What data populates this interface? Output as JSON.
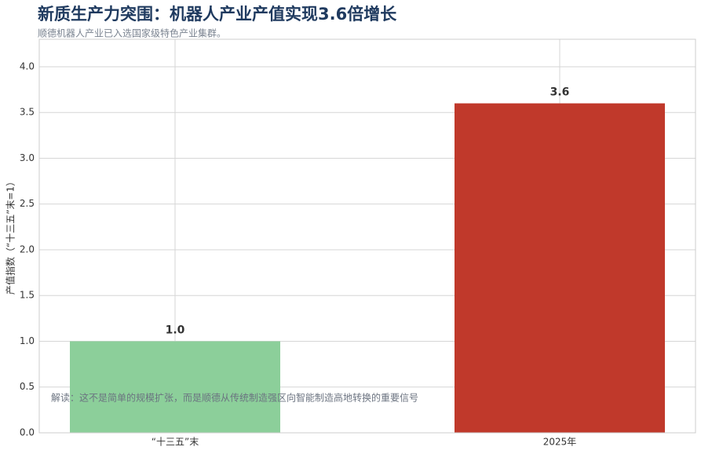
{
  "chart_data": {
    "type": "bar",
    "title": "新质生产力突围：机器人产业产值实现3.6倍增长",
    "subtitle": "顺德机器人产业已入选国家级特色产业集群。",
    "y_label": "产值指数（“十三五”末=1）",
    "annotation": "解读：这不是简单的规模扩张，而是顺德从传统制造强区向智能制造高地转换的重要信号",
    "categories": [
      "“十三五”末",
      "2025年"
    ],
    "values": [
      1,
      3.6
    ],
    "value_labels": [
      "1.0",
      "3.6"
    ],
    "colors": [
      "#8ccf9a",
      "#c0392b"
    ],
    "ylim": [
      0,
      4.3
    ],
    "yticks": [
      {
        "value": 0,
        "label": "0.0"
      },
      0.5,
      {
        "value": 1,
        "label": "1.0"
      },
      1.5,
      {
        "value": 2,
        "label": "2.0"
      },
      2.5,
      {
        "value": 3,
        "label": "3.0"
      },
      3.5,
      {
        "value": 4,
        "label": "4.0"
      }
    ],
    "grid": true
  }
}
